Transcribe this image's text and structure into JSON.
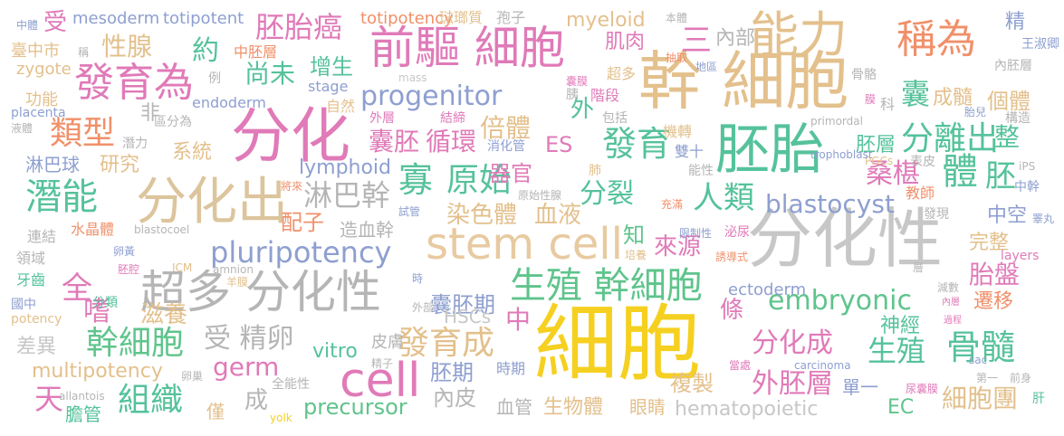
{
  "words": [
    {
      "text": "細胞",
      "color": "#f5d020"
    },
    {
      "text": "幹 細胞",
      "color": "#e3c08c"
    },
    {
      "text": "分化性",
      "color": "#c7c7c7"
    },
    {
      "text": "超多 分化性",
      "color": "#b5b5b5"
    },
    {
      "text": "胚胎",
      "color": "#55c29b"
    },
    {
      "text": "前驅 細胞",
      "color": "#e07ab8"
    },
    {
      "text": "stem cell",
      "color": "#e8caa0"
    },
    {
      "text": "分化出",
      "color": "#dcc49c"
    },
    {
      "text": "分化",
      "color": "#e07ab8"
    },
    {
      "text": "能力",
      "color": "#e3c08c"
    },
    {
      "text": "生殖 幹細胞",
      "color": "#5fc48c"
    },
    {
      "text": "cell",
      "color": "#e07ab8"
    },
    {
      "text": "稱為",
      "color": "#f0906a"
    },
    {
      "text": "發育為",
      "color": "#e07ab8"
    },
    {
      "text": "progenitor",
      "color": "#8e9fd0"
    },
    {
      "text": "pluripotency",
      "color": "#8e9fd0"
    },
    {
      "text": "潛能",
      "color": "#55c29b"
    },
    {
      "text": "幹細胞",
      "color": "#5fc48c"
    },
    {
      "text": "組織",
      "color": "#55c29b"
    },
    {
      "text": "骨髓",
      "color": "#55c29b"
    },
    {
      "text": "發育成",
      "color": "#e3c08c"
    },
    {
      "text": "embryonic",
      "color": "#5fc48c"
    },
    {
      "text": "分離出",
      "color": "#55c29b"
    },
    {
      "text": "原始",
      "color": "#55c29b"
    },
    {
      "text": "發育",
      "color": "#55c29b"
    },
    {
      "text": "人類",
      "color": "#55c29b"
    },
    {
      "text": "分化成",
      "color": "#e07ab8"
    },
    {
      "text": "外胚層",
      "color": "#e07ab8"
    },
    {
      "text": "細胞團",
      "color": "#e3c08c"
    },
    {
      "text": "生殖",
      "color": "#55c29b"
    },
    {
      "text": "胚胎癌",
      "color": "#e07ab8"
    },
    {
      "text": "類型",
      "color": "#f0906a"
    },
    {
      "text": "倍體",
      "color": "#e3c08c"
    },
    {
      "text": "囊胚",
      "color": "#e07ab8"
    },
    {
      "text": "循環",
      "color": "#e07ab8"
    },
    {
      "text": "分裂",
      "color": "#55c29b"
    },
    {
      "text": "寡",
      "color": "#55c29b"
    },
    {
      "text": "桑椹",
      "color": "#e07ab8"
    },
    {
      "text": "體",
      "color": "#55c29b"
    },
    {
      "text": "胚",
      "color": "#55c29b"
    },
    {
      "text": "blastocyst",
      "color": "#8e9fd0"
    },
    {
      "text": "淋巴幹",
      "color": "#b5b5b5"
    },
    {
      "text": "染色體",
      "color": "#e3c08c"
    },
    {
      "text": "血液",
      "color": "#e3c08c"
    },
    {
      "text": "germ",
      "color": "#e07ab8"
    },
    {
      "text": "囊胚期",
      "color": "#8e9fd0"
    },
    {
      "text": "胎盤",
      "color": "#e07ab8"
    },
    {
      "text": "precursor",
      "color": "#5fc48c"
    },
    {
      "text": "hematopoietic",
      "color": "#c7c7c7"
    },
    {
      "text": "vitro",
      "color": "#55c29b"
    },
    {
      "text": "性腺",
      "color": "#e3c08c"
    },
    {
      "text": "約",
      "color": "#55c29b"
    },
    {
      "text": "三",
      "color": "#e07ab8"
    },
    {
      "text": "肌肉",
      "color": "#e07ab8"
    },
    {
      "text": "內部",
      "color": "#b5b5b5"
    },
    {
      "text": "尚未",
      "color": "#55c29b"
    },
    {
      "text": "增生",
      "color": "#55c29b"
    },
    {
      "text": "myeloid",
      "color": "#e3c08c"
    },
    {
      "text": "lymphoid",
      "color": "#8e9fd0"
    },
    {
      "text": "ES",
      "color": "#e07ab8"
    },
    {
      "text": "器官",
      "color": "#e07ab8"
    },
    {
      "text": "配子",
      "color": "#f0906a"
    },
    {
      "text": "造血幹",
      "color": "#b5b5b5"
    },
    {
      "text": "滋養",
      "color": "#e3c08c"
    },
    {
      "text": "受 精卵",
      "color": "#b5b5b5"
    },
    {
      "text": "天",
      "color": "#e07ab8"
    },
    {
      "text": "全",
      "color": "#e07ab8"
    },
    {
      "text": "嗜",
      "color": "#e07ab8"
    },
    {
      "text": "成",
      "color": "#b5b5b5"
    },
    {
      "text": "中",
      "color": "#e07ab8"
    },
    {
      "text": "胚期",
      "color": "#8e9fd0"
    },
    {
      "text": "內皮",
      "color": "#b5b5b5"
    },
    {
      "text": "生物體",
      "color": "#e3c08c"
    },
    {
      "text": "複製",
      "color": "#e3c08c"
    },
    {
      "text": "EC",
      "color": "#5fc48c"
    },
    {
      "text": "神經",
      "color": "#55c29b"
    },
    {
      "text": "遷移",
      "color": "#f0906a"
    },
    {
      "text": "完整",
      "color": "#e3c08c"
    },
    {
      "text": "個體",
      "color": "#e3c08c"
    },
    {
      "text": "成髓",
      "color": "#e3c08c"
    },
    {
      "text": "囊",
      "color": "#55c29b"
    },
    {
      "text": "整",
      "color": "#55c29b"
    },
    {
      "text": "胚層",
      "color": "#55c29b"
    },
    {
      "text": "中空",
      "color": "#8e9fd0"
    },
    {
      "text": "精",
      "color": "#8e9fd0"
    },
    {
      "text": "系統",
      "color": "#e3c08c"
    },
    {
      "text": "研究",
      "color": "#e3c08c"
    },
    {
      "text": "淋巴球",
      "color": "#8e9fd0"
    },
    {
      "text": "非",
      "color": "#b5b5b5"
    },
    {
      "text": "外",
      "color": "#55c29b"
    },
    {
      "text": "知",
      "color": "#5fc48c"
    },
    {
      "text": "來源",
      "color": "#e07ab8"
    },
    {
      "text": "條",
      "color": "#e07ab8"
    },
    {
      "text": "差異",
      "color": "#c7c7c7"
    },
    {
      "text": "multipotency",
      "color": "#e3c08c"
    },
    {
      "text": "膽管",
      "color": "#55c29b"
    },
    {
      "text": "僅",
      "color": "#e3c08c"
    },
    {
      "text": "血管",
      "color": "#b5b5b5"
    },
    {
      "text": "眼睛",
      "color": "#e3c08c"
    },
    {
      "text": "HSCs",
      "color": "#c7c7c7"
    },
    {
      "text": "皮膚",
      "color": "#b5b5b5"
    },
    {
      "text": "時期",
      "color": "#8e9fd0"
    },
    {
      "text": "單一",
      "color": "#8e9fd0"
    },
    {
      "text": "ectoderm",
      "color": "#8e9fd0"
    },
    {
      "text": "受",
      "color": "#e07ab8"
    },
    {
      "text": "mesoderm",
      "color": "#8e9fd0"
    },
    {
      "text": "totipotent",
      "color": "#8e9fd0"
    },
    {
      "text": "totipotency",
      "color": "#f0906a"
    },
    {
      "text": "琺瑯質",
      "color": "#e3c08c"
    },
    {
      "text": "孢子",
      "color": "#b5b5b5"
    },
    {
      "text": "本體",
      "color": "#b5b5b5"
    },
    {
      "text": "中胚層",
      "color": "#f0906a"
    },
    {
      "text": "stage",
      "color": "#8e9fd0"
    },
    {
      "text": "endoderm",
      "color": "#8e9fd0"
    },
    {
      "text": "功能",
      "color": "#e3c08c"
    },
    {
      "text": "zygote",
      "color": "#e3c08c"
    },
    {
      "text": "臺中市",
      "color": "#e3c08c"
    },
    {
      "text": "中體",
      "color": "#8e9fd0"
    },
    {
      "text": "例",
      "color": "#b5b5b5"
    },
    {
      "text": "區分為",
      "color": "#b5b5b5"
    },
    {
      "text": "placenta",
      "color": "#8e9fd0"
    },
    {
      "text": "潛力",
      "color": "#b5b5b5"
    },
    {
      "text": "液體",
      "color": "#b5b5b5"
    },
    {
      "text": "自然",
      "color": "#e3c08c"
    },
    {
      "text": "外層",
      "color": "#e07ab8"
    },
    {
      "text": "結締",
      "color": "#e07ab8"
    },
    {
      "text": "胰",
      "color": "#b5b5b5"
    },
    {
      "text": "階段",
      "color": "#e07ab8"
    },
    {
      "text": "包括",
      "color": "#b5b5b5"
    },
    {
      "text": "機轉",
      "color": "#e3c08c"
    },
    {
      "text": "消化管",
      "color": "#8e9fd0"
    },
    {
      "text": "雙十",
      "color": "#8e9fd0"
    },
    {
      "text": "能性",
      "color": "#b5b5b5"
    },
    {
      "text": "肺",
      "color": "#e3c08c"
    },
    {
      "text": "超多",
      "color": "#e3c08c"
    },
    {
      "text": "囊膜",
      "color": "#e07ab8"
    },
    {
      "text": "mass",
      "color": "#c7c7c7"
    },
    {
      "text": "抽取",
      "color": "#f0906a"
    },
    {
      "text": "地區",
      "color": "#8e9fd0"
    },
    {
      "text": "骨骼",
      "color": "#b5b5b5"
    },
    {
      "text": "內胚層",
      "color": "#b5b5b5"
    },
    {
      "text": "王淑卿",
      "color": "#8e9fd0"
    },
    {
      "text": "構造",
      "color": "#b5b5b5"
    },
    {
      "text": "胎兒",
      "color": "#8e9fd0"
    },
    {
      "text": "科",
      "color": "#b5b5b5"
    },
    {
      "text": "膜",
      "color": "#e07ab8"
    },
    {
      "text": "primordal",
      "color": "#b5b5b5"
    },
    {
      "text": "表皮",
      "color": "#b5b5b5"
    },
    {
      "text": "PGCs",
      "color": "#e3c08c"
    },
    {
      "text": "iPS",
      "color": "#b5b5b5"
    },
    {
      "text": "中幹",
      "color": "#8e9fd0"
    },
    {
      "text": "教師",
      "color": "#f0906a"
    },
    {
      "text": "發現",
      "color": "#b5b5b5"
    },
    {
      "text": "trophoblast",
      "color": "#8e9fd0"
    },
    {
      "text": "泌尿",
      "color": "#e07ab8"
    },
    {
      "text": "限制性",
      "color": "#8e9fd0"
    },
    {
      "text": "誘導式",
      "color": "#f0906a"
    },
    {
      "text": "培養",
      "color": "#e3c08c"
    },
    {
      "text": "將來",
      "color": "#f0906a"
    },
    {
      "text": "原始性腺",
      "color": "#b5b5b5"
    },
    {
      "text": "充滿",
      "color": "#f0906a"
    },
    {
      "text": "試管",
      "color": "#8e9fd0"
    },
    {
      "text": "連結",
      "color": "#b5b5b5"
    },
    {
      "text": "水晶體",
      "color": "#f0906a"
    },
    {
      "text": "blastocoel",
      "color": "#b5b5b5"
    },
    {
      "text": "卵黃",
      "color": "#8e9fd0"
    },
    {
      "text": "領域",
      "color": "#b5b5b5"
    },
    {
      "text": "胚腔",
      "color": "#e07ab8"
    },
    {
      "text": "ICM",
      "color": "#e3c08c"
    },
    {
      "text": "amnion",
      "color": "#b5b5b5"
    },
    {
      "text": "羊膜",
      "color": "#e3c08c"
    },
    {
      "text": "牙齒",
      "color": "#55c29b"
    },
    {
      "text": "分類",
      "color": "#55c29b"
    },
    {
      "text": "國中",
      "color": "#8e9fd0"
    },
    {
      "text": "potency",
      "color": "#e3c08c"
    },
    {
      "text": "layers",
      "color": "#e07ab8"
    },
    {
      "text": "睪丸",
      "color": "#8e9fd0"
    },
    {
      "text": "減數",
      "color": "#b5b5b5"
    },
    {
      "text": "內層",
      "color": "#e07ab8"
    },
    {
      "text": "過程",
      "color": "#e07ab8"
    },
    {
      "text": "層",
      "color": "#b5b5b5"
    },
    {
      "text": "外部",
      "color": "#b5b5b5"
    },
    {
      "text": "精子",
      "color": "#b5b5b5"
    },
    {
      "text": "卵巢",
      "color": "#b5b5b5"
    },
    {
      "text": "allantois",
      "color": "#b5b5b5"
    },
    {
      "text": "全能性",
      "color": "#b5b5b5"
    },
    {
      "text": "yolk",
      "color": "#f5d020"
    },
    {
      "text": "carcinoma",
      "color": "#8e9fd0"
    },
    {
      "text": "sac",
      "color": "#8e9fd0"
    },
    {
      "text": "前身",
      "color": "#b5b5b5"
    },
    {
      "text": "第一",
      "color": "#b5b5b5"
    },
    {
      "text": "尿囊膜",
      "color": "#e07ab8"
    },
    {
      "text": "肝",
      "color": "#55c29b"
    },
    {
      "text": "當處",
      "color": "#e07ab8"
    },
    {
      "text": "時",
      "color": "#8e9fd0"
    },
    {
      "text": "稱",
      "color": "#b5b5b5"
    }
  ]
}
